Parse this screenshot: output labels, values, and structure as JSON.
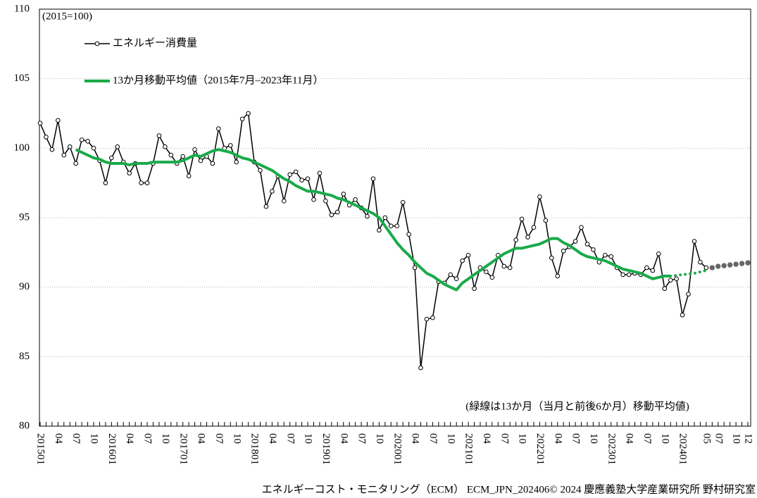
{
  "chart_data": {
    "type": "line",
    "subtitle": "(2015=100)",
    "annotation": "(緑線は13か月（当月と前後6か月）移動平均値)",
    "footer": "エネルギーコスト・モニタリング（ECM） ECM_JPN_202406© 2024 慶應義塾大学産業研究所 野村研究室",
    "categories": [
      "201501",
      null,
      null,
      "04",
      null,
      null,
      "07",
      null,
      null,
      "10",
      null,
      null,
      "201601",
      null,
      null,
      "04",
      null,
      null,
      "07",
      null,
      null,
      "10",
      null,
      null,
      "201701",
      null,
      null,
      "04",
      null,
      null,
      "07",
      null,
      null,
      "10",
      null,
      null,
      "201801",
      null,
      null,
      "04",
      null,
      null,
      "07",
      null,
      null,
      "10",
      null,
      null,
      "201901",
      null,
      null,
      "04",
      null,
      null,
      "07",
      null,
      null,
      "10",
      null,
      null,
      "202001",
      null,
      null,
      "04",
      null,
      null,
      "07",
      null,
      null,
      "10",
      null,
      null,
      "202101",
      null,
      null,
      "04",
      null,
      null,
      "07",
      null,
      null,
      "10",
      null,
      null,
      "202201",
      null,
      null,
      "04",
      null,
      null,
      "07",
      null,
      null,
      "10",
      null,
      null,
      "202301",
      null,
      null,
      "04",
      null,
      null,
      "07",
      null,
      null,
      "10",
      null,
      null,
      "202401",
      null,
      null,
      null,
      "05",
      null,
      "07",
      null,
      null,
      "10",
      null,
      "12"
    ],
    "series": [
      {
        "name": "エネルギー消費量",
        "color": "#000000",
        "style": "marker-line",
        "values": [
          101.8,
          100.8,
          99.9,
          102.0,
          99.5,
          100.1,
          98.9,
          100.6,
          100.5,
          100.0,
          99.1,
          97.5,
          99.3,
          100.1,
          99.0,
          98.2,
          98.9,
          97.5,
          97.5,
          98.9,
          100.9,
          100.1,
          99.5,
          98.9,
          99.4,
          98.0,
          99.9,
          99.1,
          99.4,
          98.9,
          101.4,
          100.0,
          100.2,
          99.0,
          102.1,
          102.5,
          99.0,
          98.4,
          95.8,
          96.9,
          98.0,
          96.2,
          98.1,
          98.3,
          97.7,
          97.8,
          96.3,
          98.2,
          96.2,
          95.2,
          95.4,
          96.7,
          95.9,
          96.3,
          95.7,
          95.1,
          97.8,
          94.1,
          95.0,
          94.4,
          94.4,
          96.1,
          93.8,
          91.4,
          84.2,
          87.7,
          87.8,
          90.4,
          90.3,
          90.9,
          90.6,
          91.9,
          92.3,
          89.9,
          91.4,
          91.1,
          90.7,
          92.3,
          91.5,
          91.4,
          93.4,
          94.9,
          93.6,
          94.3,
          96.5,
          94.8,
          92.1,
          90.8,
          92.6,
          92.9,
          93.3,
          94.3,
          93.1,
          92.7,
          91.8,
          92.3,
          92.2,
          91.4,
          90.9,
          90.9,
          91.0,
          90.9,
          91.4,
          91.2,
          92.4,
          89.9,
          90.5,
          90.6,
          88.0,
          89.5,
          93.3,
          91.8,
          91.4,
          null,
          null,
          null,
          null,
          null,
          null,
          null
        ]
      },
      {
        "name": "13か月移動平均値（2015年7月–2023年11月）",
        "color": "#1aaa4a",
        "style": "thick",
        "values": [
          null,
          null,
          null,
          null,
          null,
          null,
          99.9,
          99.7,
          99.5,
          99.3,
          99.2,
          99.0,
          98.9,
          98.9,
          98.9,
          98.8,
          98.9,
          98.9,
          98.9,
          99.0,
          99.0,
          99.0,
          99.0,
          99.0,
          99.1,
          99.3,
          99.5,
          99.4,
          99.6,
          99.8,
          99.9,
          99.8,
          99.7,
          99.5,
          99.3,
          99.2,
          99.0,
          98.8,
          98.6,
          98.4,
          98.1,
          97.8,
          97.6,
          97.3,
          97.1,
          96.9,
          96.9,
          96.8,
          96.7,
          96.6,
          96.4,
          96.3,
          96.1,
          95.9,
          95.7,
          95.5,
          95.3,
          95.0,
          94.4,
          93.8,
          93.2,
          92.7,
          92.3,
          91.8,
          91.4,
          91.0,
          90.8,
          90.5,
          90.2,
          90.0,
          89.8,
          90.3,
          90.6,
          90.9,
          91.2,
          91.5,
          91.8,
          92.1,
          92.4,
          92.6,
          92.8,
          92.8,
          92.9,
          93.0,
          93.1,
          93.3,
          93.5,
          93.5,
          93.2,
          93.0,
          92.7,
          92.4,
          92.2,
          92.1,
          92.0,
          91.9,
          91.7,
          91.5,
          91.3,
          91.2,
          91.1,
          91.0,
          90.8,
          90.6,
          90.7,
          90.8,
          90.8,
          null,
          null,
          null,
          null,
          null,
          null,
          null,
          null,
          null,
          null,
          null,
          null,
          null
        ]
      },
      {
        "color": "#1aaa4a",
        "style": "dotted",
        "values": [
          null,
          null,
          null,
          null,
          null,
          null,
          null,
          null,
          null,
          null,
          null,
          null,
          null,
          null,
          null,
          null,
          null,
          null,
          null,
          null,
          null,
          null,
          null,
          null,
          null,
          null,
          null,
          null,
          null,
          null,
          null,
          null,
          null,
          null,
          null,
          null,
          null,
          null,
          null,
          null,
          null,
          null,
          null,
          null,
          null,
          null,
          null,
          null,
          null,
          null,
          null,
          null,
          null,
          null,
          null,
          null,
          null,
          null,
          null,
          null,
          null,
          null,
          null,
          null,
          null,
          null,
          null,
          null,
          null,
          null,
          null,
          null,
          null,
          null,
          null,
          null,
          null,
          null,
          null,
          null,
          null,
          null,
          null,
          null,
          null,
          null,
          null,
          null,
          null,
          null,
          null,
          null,
          null,
          null,
          null,
          null,
          null,
          null,
          null,
          null,
          null,
          null,
          null,
          null,
          null,
          null,
          90.8,
          90.85,
          90.9,
          90.95,
          91.0,
          91.1,
          91.2,
          null,
          null,
          null,
          null,
          null,
          null,
          null
        ]
      },
      {
        "color": "#666666",
        "style": "dots",
        "values": [
          null,
          null,
          null,
          null,
          null,
          null,
          null,
          null,
          null,
          null,
          null,
          null,
          null,
          null,
          null,
          null,
          null,
          null,
          null,
          null,
          null,
          null,
          null,
          null,
          null,
          null,
          null,
          null,
          null,
          null,
          null,
          null,
          null,
          null,
          null,
          null,
          null,
          null,
          null,
          null,
          null,
          null,
          null,
          null,
          null,
          null,
          null,
          null,
          null,
          null,
          null,
          null,
          null,
          null,
          null,
          null,
          null,
          null,
          null,
          null,
          null,
          null,
          null,
          null,
          null,
          null,
          null,
          null,
          null,
          null,
          null,
          null,
          null,
          null,
          null,
          null,
          null,
          null,
          null,
          null,
          null,
          null,
          null,
          null,
          null,
          null,
          null,
          null,
          null,
          null,
          null,
          null,
          null,
          null,
          null,
          null,
          null,
          null,
          null,
          null,
          null,
          null,
          null,
          null,
          null,
          null,
          null,
          null,
          null,
          null,
          null,
          null,
          null,
          91.4,
          91.5,
          91.55,
          91.6,
          91.65,
          91.7,
          91.75
        ]
      }
    ],
    "ylim": [
      80,
      110
    ],
    "yticks": [
      80,
      85,
      90,
      95,
      100,
      105,
      110
    ],
    "grid": true,
    "legend": "upper left"
  }
}
